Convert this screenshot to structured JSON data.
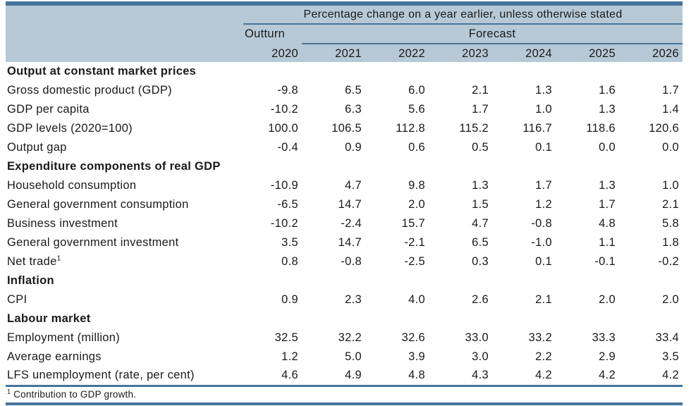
{
  "header": {
    "top_note": "Percentage change on a year earlier, unless otherwise stated",
    "outturn_label": "Outturn",
    "forecast_label": "Forecast",
    "years": [
      "2020",
      "2021",
      "2022",
      "2023",
      "2024",
      "2025",
      "2026"
    ]
  },
  "rows": [
    {
      "type": "section",
      "label": "Output at constant market prices"
    },
    {
      "type": "data",
      "label": "Gross domestic product (GDP)",
      "values": [
        "-9.8",
        "6.5",
        "6.0",
        "2.1",
        "1.3",
        "1.6",
        "1.7"
      ]
    },
    {
      "type": "data",
      "label": "GDP per capita",
      "values": [
        "-10.2",
        "6.3",
        "5.6",
        "1.7",
        "1.0",
        "1.3",
        "1.4"
      ]
    },
    {
      "type": "data",
      "label": "GDP levels (2020=100)",
      "values": [
        "100.0",
        "106.5",
        "112.8",
        "115.2",
        "116.7",
        "118.6",
        "120.6"
      ]
    },
    {
      "type": "data",
      "label": "Output gap",
      "values": [
        "-0.4",
        "0.9",
        "0.6",
        "0.5",
        "0.1",
        "0.0",
        "0.0"
      ]
    },
    {
      "type": "section",
      "label": "Expenditure components of real GDP"
    },
    {
      "type": "data",
      "label": "Household consumption",
      "values": [
        "-10.9",
        "4.7",
        "9.8",
        "1.3",
        "1.7",
        "1.3",
        "1.0"
      ]
    },
    {
      "type": "data",
      "label": "General government consumption",
      "values": [
        "-6.5",
        "14.7",
        "2.0",
        "1.5",
        "1.2",
        "1.7",
        "2.1"
      ]
    },
    {
      "type": "data",
      "label": "Business investment",
      "values": [
        "-10.2",
        "-2.4",
        "15.7",
        "4.7",
        "-0.8",
        "4.8",
        "5.8"
      ]
    },
    {
      "type": "data",
      "label": "General government investment",
      "values": [
        "3.5",
        "14.7",
        "-2.1",
        "6.5",
        "-1.0",
        "1.1",
        "1.8"
      ]
    },
    {
      "type": "data",
      "label": "Net trade",
      "sup": "1",
      "values": [
        "0.8",
        "-0.8",
        "-2.5",
        "0.3",
        "0.1",
        "-0.1",
        "-0.2"
      ]
    },
    {
      "type": "section",
      "label": "Inflation"
    },
    {
      "type": "data",
      "label": "CPI",
      "values": [
        "0.9",
        "2.3",
        "4.0",
        "2.6",
        "2.1",
        "2.0",
        "2.0"
      ]
    },
    {
      "type": "section",
      "label": "Labour market"
    },
    {
      "type": "data",
      "label": "Employment (million)",
      "values": [
        "32.5",
        "32.2",
        "32.6",
        "33.0",
        "33.2",
        "33.3",
        "33.4"
      ]
    },
    {
      "type": "data",
      "label": "Average earnings",
      "values": [
        "1.2",
        "5.0",
        "3.9",
        "3.0",
        "2.2",
        "2.9",
        "3.5"
      ]
    },
    {
      "type": "data",
      "label": "LFS unemployment (rate, per cent)",
      "values": [
        "4.6",
        "4.9",
        "4.8",
        "4.3",
        "4.2",
        "4.2",
        "4.2"
      ]
    }
  ],
  "footnote": {
    "sup": "1",
    "text": "Contribution to GDP growth."
  },
  "colors": {
    "accent": "#45749B",
    "header_bg": "#B7C9D6"
  }
}
